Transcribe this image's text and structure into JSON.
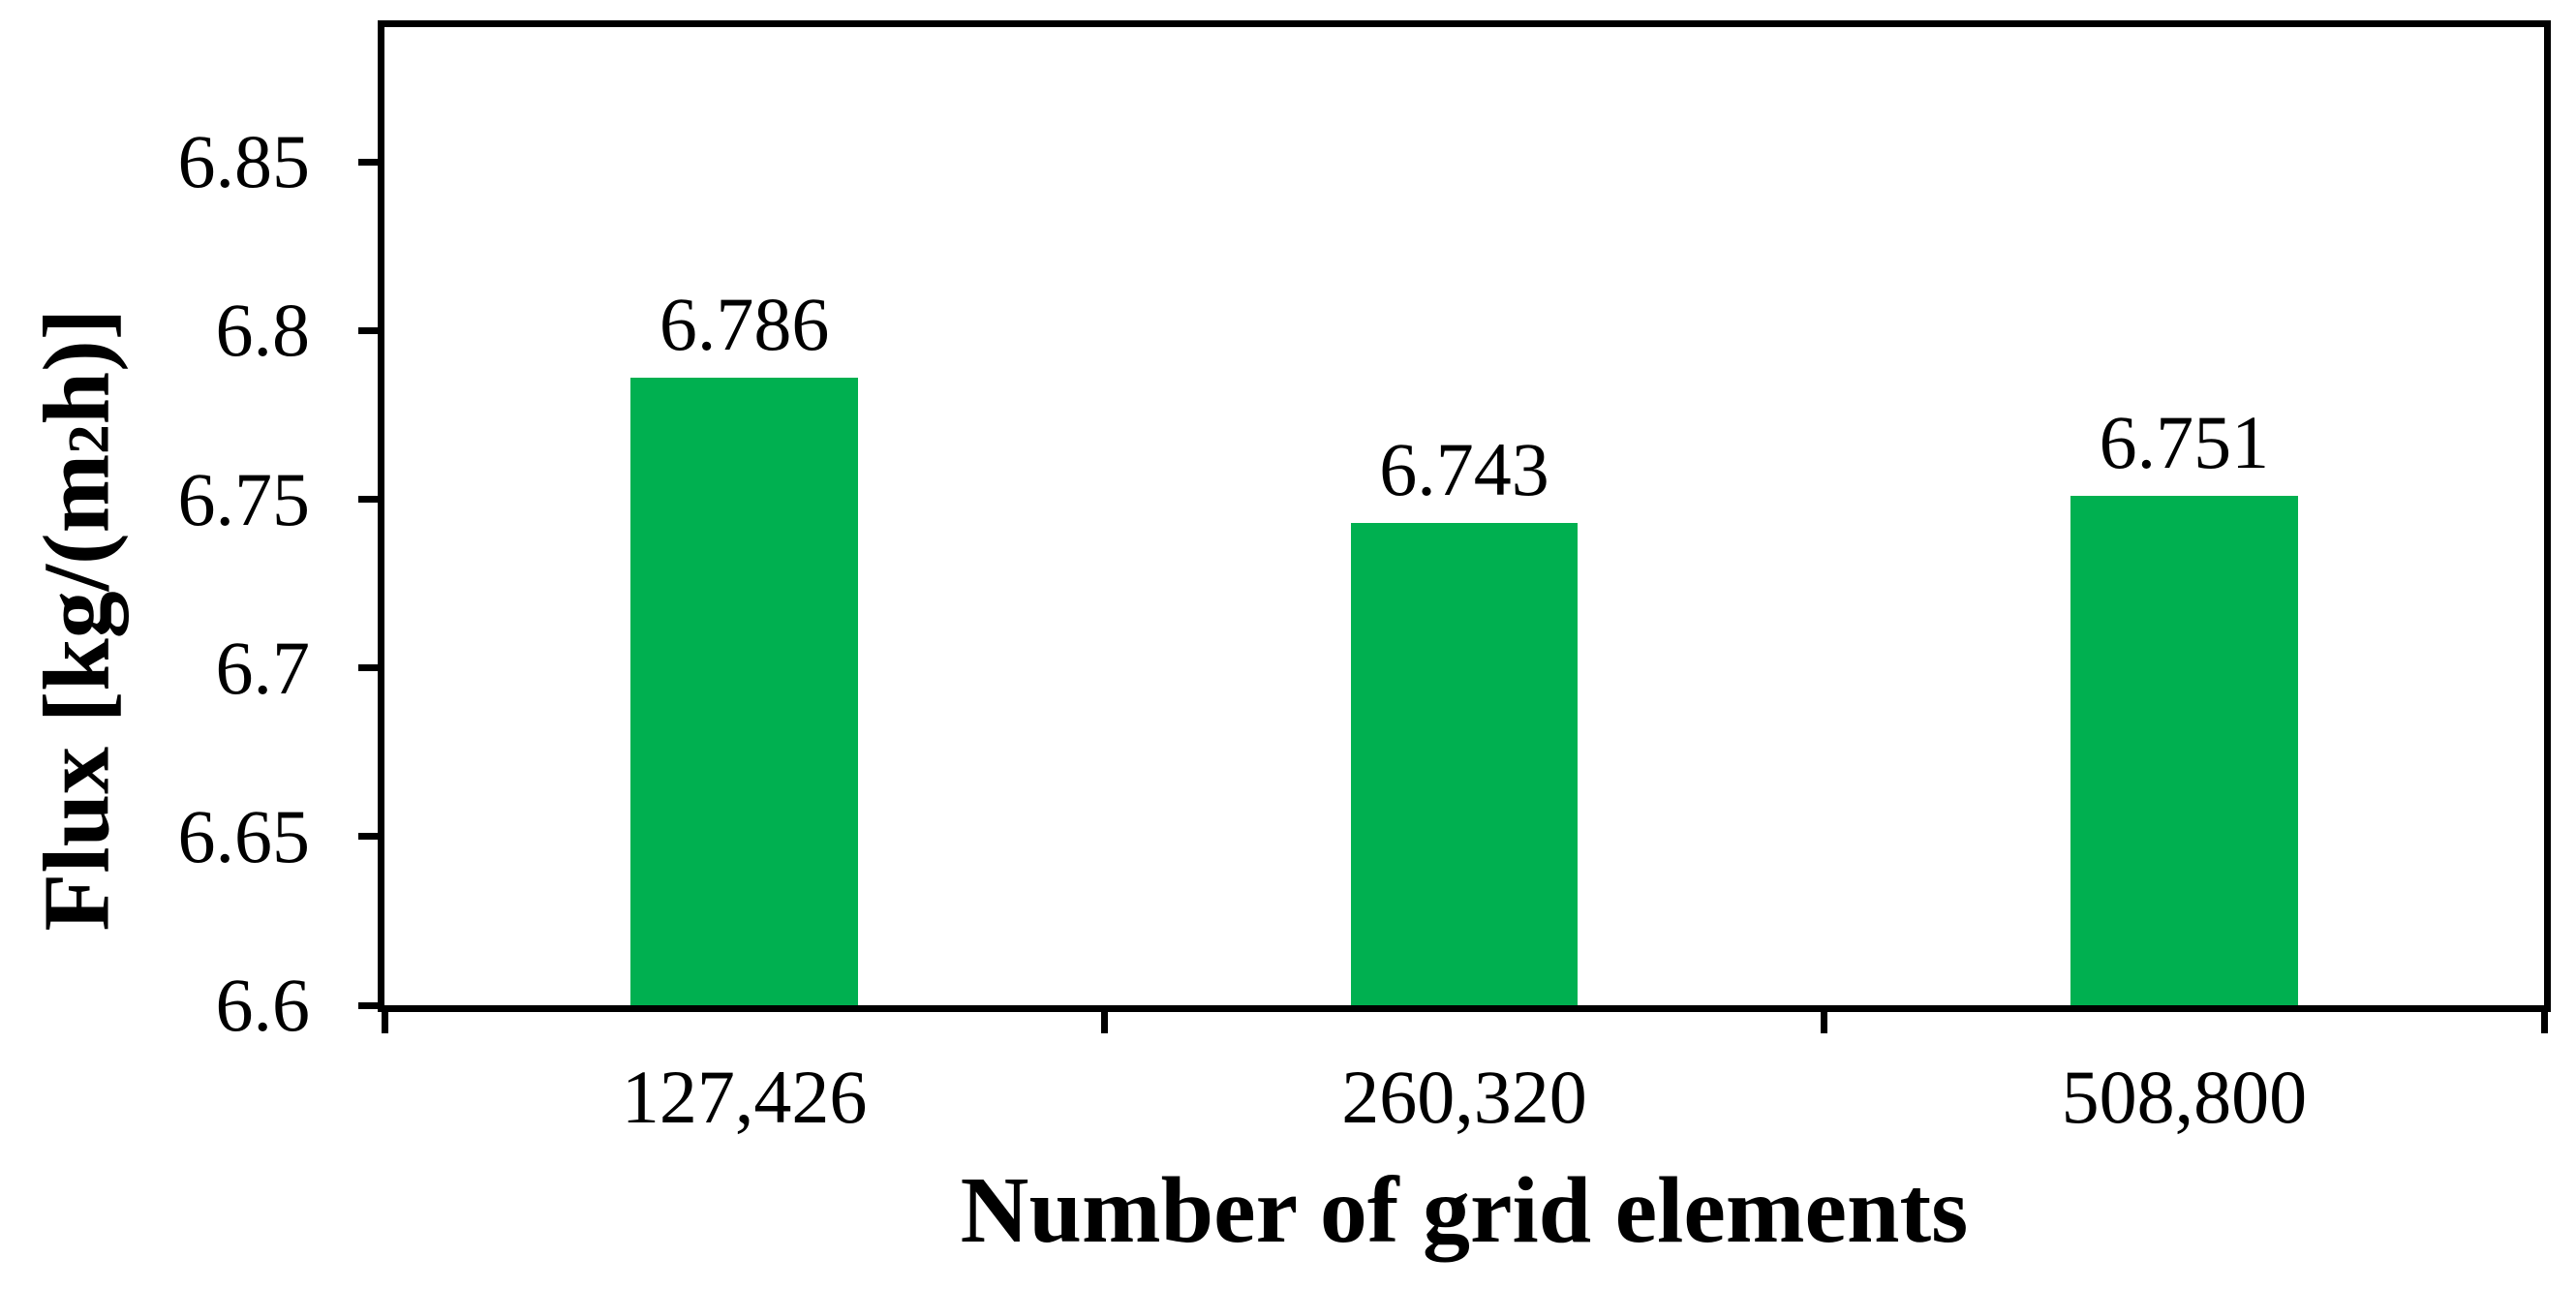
{
  "chart_data": {
    "type": "bar",
    "categories": [
      "127,426",
      "260,320",
      "508,800"
    ],
    "values": [
      6.786,
      6.743,
      6.751
    ],
    "data_labels": [
      "6.786",
      "6.743",
      "6.751"
    ],
    "xlabel": "Number of grid elements",
    "ylabel_text": "Flux [kg/(m²h)]",
    "ylabel_prefix": "Flux [kg/(m",
    "ylabel_sup": "2",
    "ylabel_suffix": "h)]",
    "ytick_values": [
      6.6,
      6.65,
      6.7,
      6.75,
      6.8,
      6.85
    ],
    "ytick_labels": [
      "6.6",
      "6.65",
      "6.7",
      "6.75",
      "6.8",
      "6.85"
    ],
    "ylim": [
      6.6,
      6.89
    ],
    "bar_width_fraction": 0.316,
    "bar_color": "#00B050",
    "axis_color": "#000000",
    "background_color": "#FFFFFF",
    "grid": false,
    "legend_position": "none",
    "title": ""
  }
}
